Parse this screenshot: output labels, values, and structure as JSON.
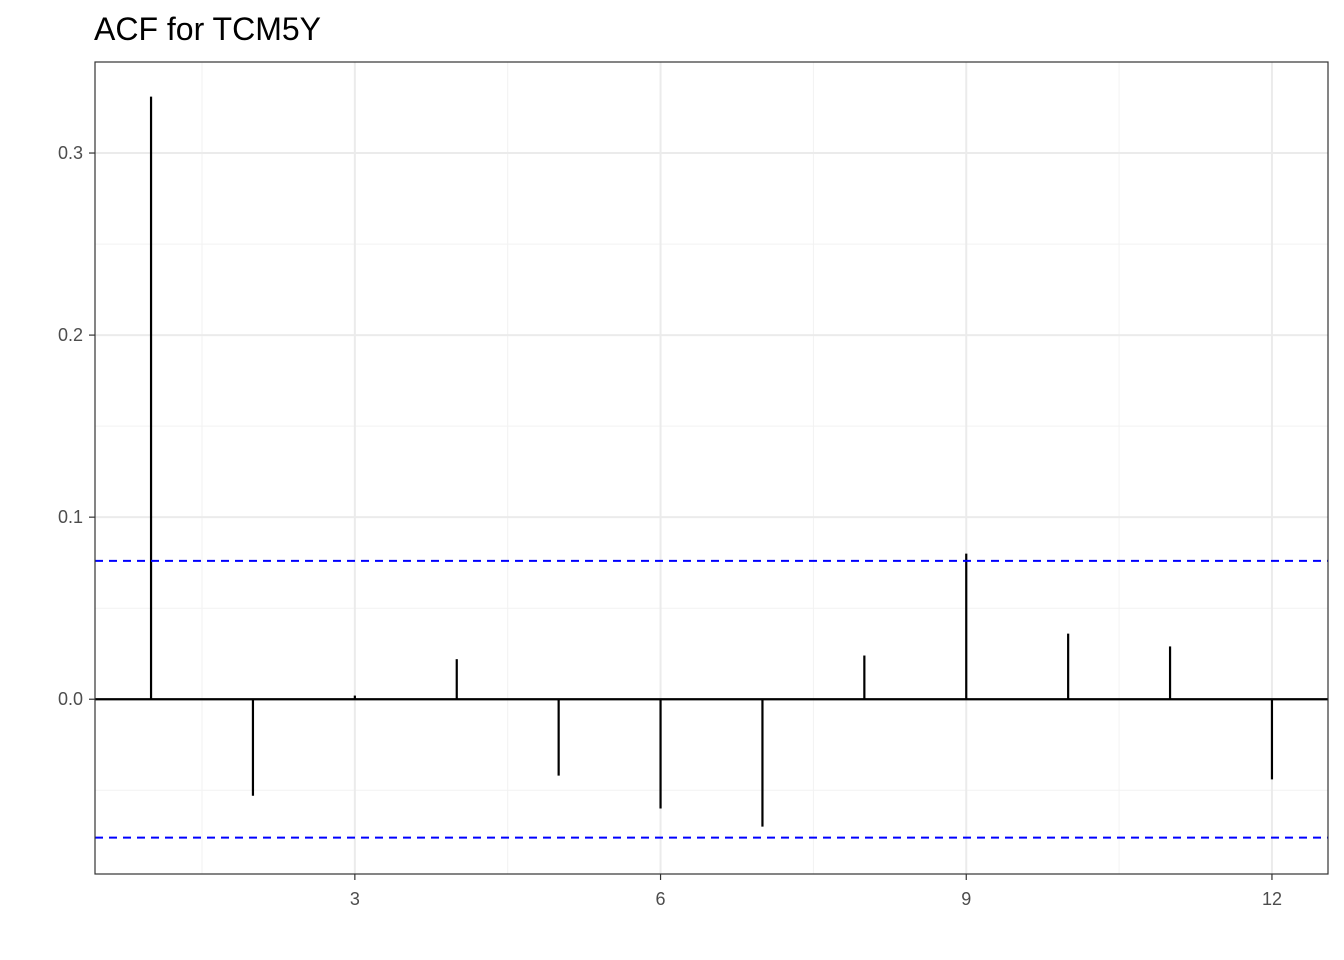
{
  "chart_data": {
    "type": "bar",
    "title": "ACF for TCM5Y",
    "xlabel": "",
    "ylabel": "",
    "x": [
      1,
      2,
      3,
      4,
      5,
      6,
      7,
      8,
      9,
      10,
      11,
      12
    ],
    "values": [
      0.331,
      -0.053,
      0.002,
      0.022,
      -0.042,
      -0.06,
      -0.07,
      0.024,
      0.08,
      0.036,
      0.029,
      -0.044
    ],
    "xlim": [
      0.45,
      12.55
    ],
    "ylim": [
      -0.096,
      0.35
    ],
    "x_ticks": [
      3,
      6,
      9,
      12
    ],
    "x_tick_labels": [
      "3",
      "6",
      "9",
      "12"
    ],
    "y_ticks": [
      0.0,
      0.1,
      0.2,
      0.3
    ],
    "y_tick_labels": [
      "0.0",
      "0.1",
      "0.2",
      "0.3"
    ],
    "confidence_bound": 0.076,
    "grid": true,
    "colors": {
      "spike": "#000000",
      "zero_line": "#000000",
      "confidence": "#0000ff",
      "grid_major": "#ebebeb",
      "grid_minor": "#f2f2f2",
      "panel_border": "#333333"
    }
  }
}
